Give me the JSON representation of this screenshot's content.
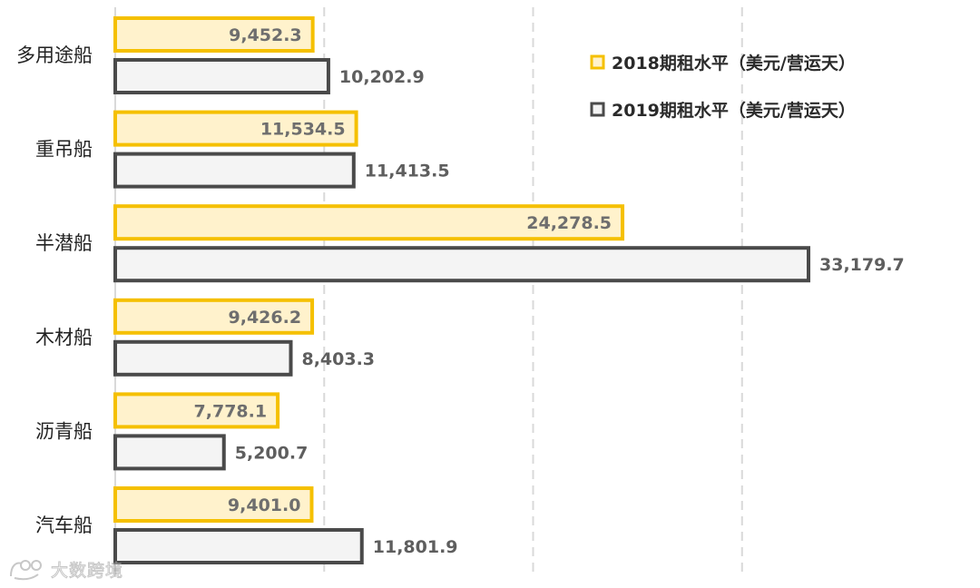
{
  "chart_data": {
    "type": "bar",
    "orientation": "horizontal",
    "categories": [
      "多用途船",
      "重吊船",
      "半潜船",
      "木材船",
      "沥青船",
      "汽车船"
    ],
    "series": [
      {
        "name": "2018期租水平（美元/营运天）",
        "values": [
          9452.3,
          11534.5,
          24278.5,
          9426.2,
          7778.1,
          9401.0
        ],
        "labels": [
          "9,452.3",
          "11,534.5",
          "24,278.5",
          "9,426.2",
          "7,778.1",
          "9,401.0"
        ],
        "fill": "#fff2cc",
        "stroke": "#f5c000"
      },
      {
        "name": "2019期租水平（美元/营运天）",
        "values": [
          10202.9,
          11413.5,
          33179.7,
          8403.3,
          5200.7,
          11801.9
        ],
        "labels": [
          "10,202.9",
          "11,413.5",
          "33,179.7",
          "8,403.3",
          "5,200.7",
          "11,801.9"
        ],
        "fill": "#f4f4f4",
        "stroke": "#4a4a4a"
      }
    ],
    "xlim": [
      0,
      40000
    ],
    "grid": true,
    "legend_position": "top-right",
    "watermark": "大数跨境"
  }
}
